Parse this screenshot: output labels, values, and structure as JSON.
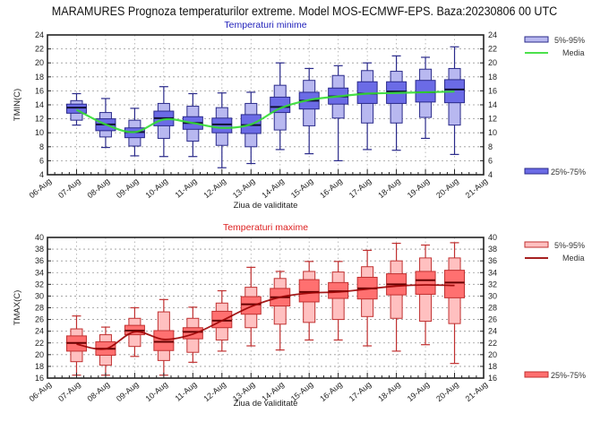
{
  "title": "MARAMURES  Prognoza temperaturilor extreme.  Model MOS-ECMWF-EPS. Baza:20230806 00 UTC",
  "chart_data": [
    {
      "type": "boxplot",
      "title": "Temperaturi minime",
      "title_color": "#2222bb",
      "xlabel": "Ziua de validitate",
      "ylabel": "TMIN(C)",
      "ylim": [
        4,
        24
      ],
      "yticks": [
        4,
        6,
        8,
        10,
        12,
        14,
        16,
        18,
        20,
        22,
        24
      ],
      "xtick_labels": [
        "06-Aug",
        "07-Aug",
        "08-Aug",
        "09-Aug",
        "10-Aug",
        "11-Aug",
        "12-Aug",
        "13-Aug",
        "14-Aug",
        "15-Aug",
        "16-Aug",
        "17-Aug",
        "18-Aug",
        "19-Aug",
        "20-Aug",
        "21-Aug"
      ],
      "grid": true,
      "colors": {
        "box_outer": "#b8b8f0",
        "box_inner": "#6b6be6",
        "edge": "#2a2a8a",
        "mean_line": "#33dd33",
        "median": "#111133"
      },
      "legend": {
        "position": "right",
        "items": [
          "5%-95%",
          "Media",
          "25%-75%"
        ]
      },
      "categories": [
        "07-Aug",
        "08-Aug",
        "09-Aug",
        "10-Aug",
        "11-Aug",
        "12-Aug",
        "13-Aug",
        "14-Aug",
        "15-Aug",
        "16-Aug",
        "17-Aug",
        "18-Aug",
        "19-Aug",
        "20-Aug"
      ],
      "boxes": [
        {
          "min": 11.1,
          "p5": 11.8,
          "p25": 12.8,
          "median": 13.6,
          "p75": 14.1,
          "p95": 14.6,
          "max": 15.6
        },
        {
          "min": 7.9,
          "p5": 9.4,
          "p25": 10.3,
          "median": 11.2,
          "p75": 12.0,
          "p95": 12.9,
          "max": 14.9
        },
        {
          "min": 6.7,
          "p5": 8.1,
          "p25": 9.3,
          "median": 10.1,
          "p75": 10.7,
          "p95": 11.8,
          "max": 13.5
        },
        {
          "min": 6.6,
          "p5": 9.2,
          "p25": 11.0,
          "median": 12.1,
          "p75": 13.1,
          "p95": 14.2,
          "max": 16.6
        },
        {
          "min": 6.6,
          "p5": 8.8,
          "p25": 10.5,
          "median": 11.4,
          "p75": 12.3,
          "p95": 13.8,
          "max": 15.6
        },
        {
          "min": 5.0,
          "p5": 8.2,
          "p25": 10.0,
          "median": 11.2,
          "p75": 12.1,
          "p95": 13.6,
          "max": 15.7
        },
        {
          "min": 5.6,
          "p5": 8.0,
          "p25": 9.9,
          "median": 11.1,
          "p75": 12.6,
          "p95": 14.2,
          "max": 15.8
        },
        {
          "min": 7.6,
          "p5": 10.4,
          "p25": 12.9,
          "median": 13.7,
          "p75": 15.1,
          "p95": 16.8,
          "max": 20.0
        },
        {
          "min": 7.0,
          "p5": 11.0,
          "p25": 13.4,
          "median": 14.6,
          "p75": 15.8,
          "p95": 17.5,
          "max": 19.2
        },
        {
          "min": 6.0,
          "p5": 12.1,
          "p25": 14.1,
          "median": 15.2,
          "p75": 16.4,
          "p95": 18.2,
          "max": 19.6
        },
        {
          "min": 7.6,
          "p5": 11.4,
          "p25": 14.2,
          "median": 15.6,
          "p75": 17.3,
          "p95": 18.9,
          "max": 20.0
        },
        {
          "min": 7.5,
          "p5": 11.4,
          "p25": 14.2,
          "median": 15.9,
          "p75": 17.3,
          "p95": 18.8,
          "max": 21.0
        },
        {
          "min": 9.2,
          "p5": 12.2,
          "p25": 14.4,
          "median": 15.8,
          "p75": 17.5,
          "p95": 19.1,
          "max": 20.8
        },
        {
          "min": 6.9,
          "p5": 11.1,
          "p25": 14.3,
          "median": 16.2,
          "p75": 17.6,
          "p95": 19.2,
          "max": 22.3
        }
      ],
      "mean": [
        13.3,
        11.2,
        10.1,
        11.9,
        11.4,
        10.7,
        11.2,
        13.5,
        14.7,
        15.2,
        15.6,
        15.7,
        15.8,
        15.9
      ]
    },
    {
      "type": "boxplot",
      "title": "Temperaturi maxime",
      "title_color": "#dd2222",
      "xlabel": "Ziua de validitate",
      "ylabel": "TMAX(C)",
      "ylim": [
        16,
        40
      ],
      "yticks": [
        16,
        18,
        20,
        22,
        24,
        26,
        28,
        30,
        32,
        34,
        36,
        38,
        40
      ],
      "xtick_labels": [
        "06-Aug",
        "07-Aug",
        "08-Aug",
        "09-Aug",
        "10-Aug",
        "11-Aug",
        "12-Aug",
        "13-Aug",
        "14-Aug",
        "15-Aug",
        "16-Aug",
        "17-Aug",
        "18-Aug",
        "19-Aug",
        "20-Aug",
        "21-Aug"
      ],
      "grid": true,
      "colors": {
        "box_outer": "#ffc0c0",
        "box_inner": "#ff7070",
        "edge": "#c03030",
        "mean_line": "#990000",
        "median": "#660000"
      },
      "legend": {
        "position": "right",
        "items": [
          "5%-95%",
          "Media",
          "25%-75%"
        ]
      },
      "categories": [
        "07-Aug",
        "08-Aug",
        "09-Aug",
        "10-Aug",
        "11-Aug",
        "12-Aug",
        "13-Aug",
        "14-Aug",
        "15-Aug",
        "16-Aug",
        "17-Aug",
        "18-Aug",
        "19-Aug",
        "20-Aug"
      ],
      "boxes": [
        {
          "min": 16.5,
          "p5": 18.8,
          "p25": 20.6,
          "median": 22.0,
          "p75": 23.2,
          "p95": 24.4,
          "max": 26.6
        },
        {
          "min": 16.5,
          "p5": 18.2,
          "p25": 19.9,
          "median": 21.0,
          "p75": 22.2,
          "p95": 23.4,
          "max": 24.7
        },
        {
          "min": 19.7,
          "p5": 21.4,
          "p25": 23.4,
          "median": 24.1,
          "p75": 25.0,
          "p95": 26.2,
          "max": 28.0
        },
        {
          "min": 16.5,
          "p5": 19.0,
          "p25": 20.7,
          "median": 22.2,
          "p75": 24.1,
          "p95": 27.3,
          "max": 29.4
        },
        {
          "min": 18.7,
          "p5": 20.4,
          "p25": 22.7,
          "median": 23.9,
          "p75": 24.6,
          "p95": 26.2,
          "max": 28.1
        },
        {
          "min": 20.6,
          "p5": 22.5,
          "p25": 24.6,
          "median": 25.8,
          "p75": 27.4,
          "p95": 28.8,
          "max": 30.9
        },
        {
          "min": 21.5,
          "p5": 24.6,
          "p25": 26.9,
          "median": 28.6,
          "p75": 29.9,
          "p95": 31.5,
          "max": 34.9
        },
        {
          "min": 20.8,
          "p5": 25.2,
          "p25": 28.3,
          "median": 29.8,
          "p75": 31.3,
          "p95": 33.0,
          "max": 34.2
        },
        {
          "min": 22.5,
          "p5": 25.5,
          "p25": 29.0,
          "median": 30.7,
          "p75": 32.8,
          "p95": 34.2,
          "max": 35.9
        },
        {
          "min": 22.5,
          "p5": 26.0,
          "p25": 29.6,
          "median": 30.8,
          "p75": 32.3,
          "p95": 34.1,
          "max": 35.9
        },
        {
          "min": 21.5,
          "p5": 26.5,
          "p25": 29.5,
          "median": 31.3,
          "p75": 33.2,
          "p95": 35.0,
          "max": 37.8
        },
        {
          "min": 20.6,
          "p5": 26.2,
          "p25": 30.2,
          "median": 32.0,
          "p75": 33.8,
          "p95": 36.0,
          "max": 39.0
        },
        {
          "min": 21.7,
          "p5": 25.7,
          "p25": 30.3,
          "median": 32.7,
          "p75": 34.2,
          "p95": 36.5,
          "max": 38.7
        },
        {
          "min": 18.5,
          "p5": 25.3,
          "p25": 29.7,
          "median": 32.3,
          "p75": 34.4,
          "p95": 36.5,
          "max": 39.1
        }
      ],
      "mean": [
        21.8,
        21.0,
        23.9,
        22.6,
        23.5,
        25.8,
        28.2,
        29.8,
        30.5,
        30.7,
        31.2,
        31.7,
        31.9,
        31.8
      ]
    }
  ]
}
